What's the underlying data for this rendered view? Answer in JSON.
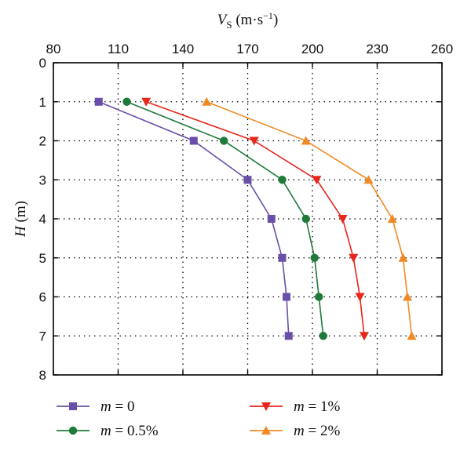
{
  "chart_data": {
    "type": "line",
    "xlabel_main": "V",
    "xlabel_sub": "S",
    "xlabel_unit": " (m·s",
    "xlabel_sup": "−1",
    "xlabel_close": ")",
    "ylabel_main": "H",
    "ylabel_unit": " (m)",
    "x_axis_position": "top",
    "y_axis_inverted": true,
    "xlim": [
      80,
      260
    ],
    "ylim": [
      0,
      8
    ],
    "xticks": [
      80,
      110,
      140,
      170,
      200,
      230,
      260
    ],
    "yticks": [
      0,
      1,
      2,
      3,
      4,
      5,
      6,
      7,
      8
    ],
    "grid": true,
    "legend_position": "bottom",
    "series": [
      {
        "name_var": "m",
        "name_rest": " = 0",
        "color": "#6a4fa8",
        "marker": "square",
        "points": [
          [
            101,
            1
          ],
          [
            145,
            2
          ],
          [
            170,
            3
          ],
          [
            181,
            4
          ],
          [
            186,
            5
          ],
          [
            188,
            6
          ],
          [
            189,
            7
          ]
        ]
      },
      {
        "name_var": "m",
        "name_rest": " = 0.5%",
        "color": "#1f7a3a",
        "marker": "circle",
        "points": [
          [
            114,
            1
          ],
          [
            159,
            2
          ],
          [
            186,
            3
          ],
          [
            197,
            4
          ],
          [
            201,
            5
          ],
          [
            203,
            6
          ],
          [
            205,
            7
          ]
        ]
      },
      {
        "name_var": "m",
        "name_rest": " = 1%",
        "color": "#e8261c",
        "marker": "triangle-down",
        "points": [
          [
            123,
            1
          ],
          [
            173,
            2
          ],
          [
            202,
            3
          ],
          [
            214,
            4
          ],
          [
            219,
            5
          ],
          [
            222,
            6
          ],
          [
            224,
            7
          ]
        ]
      },
      {
        "name_var": "m",
        "name_rest": " = 2%",
        "color": "#f08a24",
        "marker": "triangle-up",
        "points": [
          [
            151,
            1
          ],
          [
            197,
            2
          ],
          [
            226,
            3
          ],
          [
            237,
            4
          ],
          [
            242,
            5
          ],
          [
            244,
            6
          ],
          [
            246,
            7
          ]
        ]
      }
    ]
  }
}
